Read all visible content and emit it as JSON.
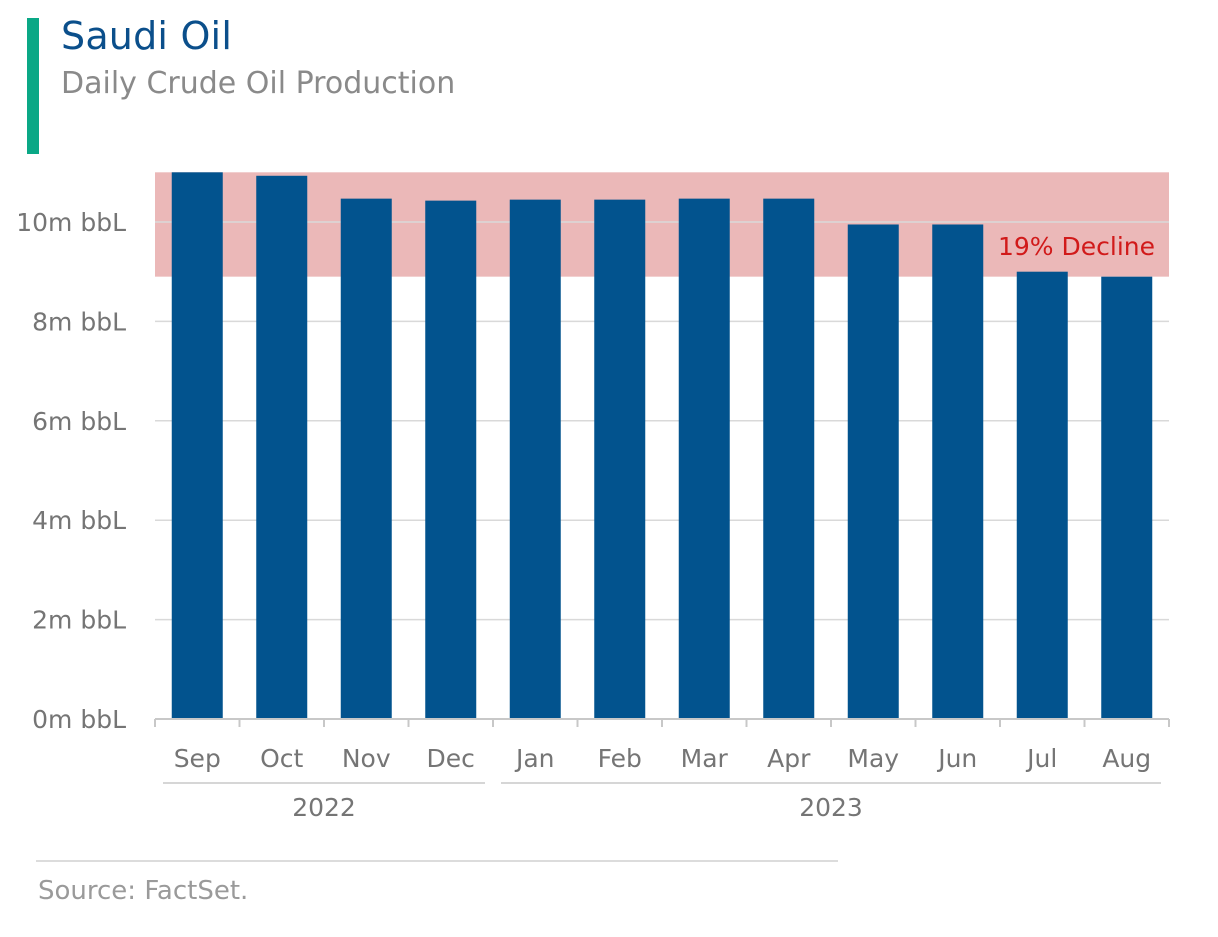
{
  "header": {
    "title": "Saudi Oil",
    "subtitle": "Daily Crude Oil Production"
  },
  "footer": {
    "source": "Source: FactSet."
  },
  "colors": {
    "accent": "#0aa886",
    "title": "#0b4f8b",
    "bar": "#02538e",
    "highlight_band": "#ebb8b8",
    "annotation": "#d11a1a",
    "grid": "#d9d9d9",
    "axis_text": "#757575"
  },
  "chart_data": {
    "type": "bar",
    "title": "Saudi Oil",
    "subtitle": "Daily Crude Oil Production",
    "categories": [
      "Sep",
      "Oct",
      "Nov",
      "Dec",
      "Jan",
      "Feb",
      "Mar",
      "Apr",
      "May",
      "Jun",
      "Jul",
      "Aug"
    ],
    "category_groups": [
      {
        "label": "2022",
        "count": 4
      },
      {
        "label": "2023",
        "count": 8
      }
    ],
    "values": [
      11.0,
      10.93,
      10.47,
      10.43,
      10.45,
      10.45,
      10.47,
      10.47,
      9.95,
      9.95,
      9.0,
      8.9
    ],
    "unit": "m bbL",
    "y_ticks": [
      {
        "value": 0,
        "label": "0m bbL"
      },
      {
        "value": 2,
        "label": "2m bbL"
      },
      {
        "value": 4,
        "label": "4m bbL"
      },
      {
        "value": 6,
        "label": "6m bbL"
      },
      {
        "value": 8,
        "label": "8m bbL"
      },
      {
        "value": 10,
        "label": "10m bbL"
      }
    ],
    "ylim": [
      0,
      11.0
    ],
    "grid": true,
    "highlight_band": {
      "from": 8.9,
      "to": 11.0
    },
    "annotation": {
      "text": "19% Decline",
      "at_category": "Jul"
    },
    "xlabel": "",
    "ylabel": ""
  }
}
